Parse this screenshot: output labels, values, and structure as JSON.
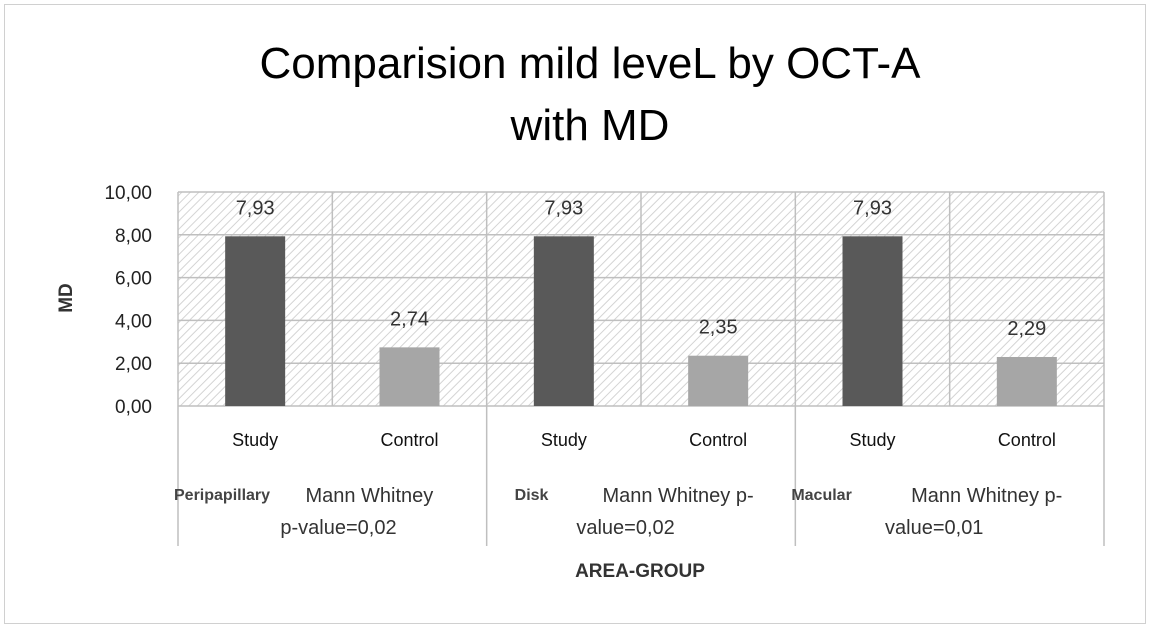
{
  "chart_data": {
    "type": "bar",
    "title": [
      "Comparision  mild leveL by OCT-A",
      "with MD"
    ],
    "ylabel": "MD",
    "xlabel": "AREA-GROUP",
    "ylim": [
      0,
      10
    ],
    "yticks": [
      "0,00",
      "2,00",
      "4,00",
      "6,00",
      "8,00",
      "10,00"
    ],
    "groups": [
      {
        "name": "Peripapillary",
        "note": [
          "Mann Whitney",
          "p-value=0,02"
        ],
        "categories": [
          "Study",
          "Control"
        ],
        "values": [
          7.93,
          2.74
        ],
        "labels": [
          "7,93",
          "2,74"
        ]
      },
      {
        "name": "Disk",
        "note": [
          "Mann Whitney  p-",
          "value=0,02"
        ],
        "categories": [
          "Study",
          "Control"
        ],
        "values": [
          7.93,
          2.35
        ],
        "labels": [
          "7,93",
          "2,35"
        ]
      },
      {
        "name": "Macular",
        "note": [
          "Mann Whitney  p-",
          "value=0,01"
        ],
        "categories": [
          "Study",
          "Control"
        ],
        "values": [
          7.93,
          2.29
        ],
        "labels": [
          "7,93",
          "2,29"
        ]
      }
    ],
    "grid": true,
    "colors": {
      "study": "#595959",
      "control": "#a6a6a6",
      "grid": "#bfbfbf",
      "hatch": "#d4d4d4"
    }
  }
}
